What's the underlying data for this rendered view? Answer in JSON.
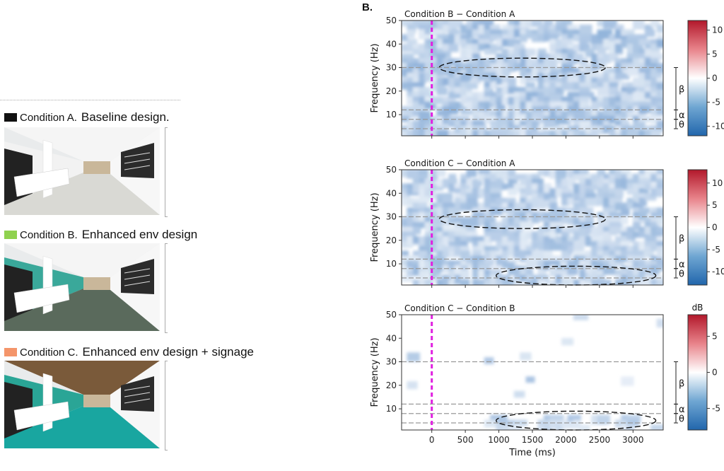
{
  "left_panel": {
    "conditions": [
      {
        "label": "Condition A.",
        "description": "Baseline design.",
        "color": "#111111",
        "wall_accent": "#f2f2f2",
        "floor": "#d9d9d4"
      },
      {
        "label": "Condition B.",
        "description": "Enhanced env design",
        "color": "#8fd14f",
        "wall_accent": "#3aa89a",
        "floor": "#5a6a5c"
      },
      {
        "label": "Condition C.",
        "description": "Enhanced env design + signage",
        "color": "#f4956a",
        "wall_accent": "#2aa596",
        "floor": "#19a6a0"
      }
    ]
  },
  "panel_letter": "B.",
  "chart_data": [
    {
      "type": "heatmap",
      "title": "Condition B − Condition A",
      "xlabel": "",
      "ylabel": "Frequency (Hz)",
      "xlim": [
        -450,
        3450
      ],
      "ylim": [
        1,
        50
      ],
      "xticks": [],
      "yticks": [
        10,
        20,
        30,
        40,
        50
      ],
      "event_line_x": 0,
      "band_lines": [
        4,
        8,
        12,
        30
      ],
      "bands": [
        {
          "label": "β",
          "range": [
            12,
            30
          ]
        },
        {
          "label": "α",
          "range": [
            8,
            12
          ]
        },
        {
          "label": "θ",
          "range": [
            4,
            8
          ]
        }
      ],
      "colorbar": {
        "unit": "",
        "range": [
          -12,
          12
        ],
        "ticks": [
          -10,
          -5,
          0,
          5,
          10
        ]
      },
      "ellipses": [
        {
          "center": [
            1350,
            30
          ],
          "rx": 1300,
          "ry": 4
        }
      ],
      "density": 0.62,
      "strength": 0.45,
      "seed": 11
    },
    {
      "type": "heatmap",
      "title": "Condition C − Condition A",
      "xlabel": "",
      "ylabel": "Frequency (Hz)",
      "xlim": [
        -450,
        3450
      ],
      "ylim": [
        1,
        50
      ],
      "xticks": [],
      "yticks": [
        10,
        20,
        30,
        40,
        50
      ],
      "event_line_x": 0,
      "band_lines": [
        4,
        8,
        12,
        30
      ],
      "bands": [
        {
          "label": "β",
          "range": [
            12,
            30
          ]
        },
        {
          "label": "α",
          "range": [
            8,
            12
          ]
        },
        {
          "label": "θ",
          "range": [
            4,
            8
          ]
        }
      ],
      "colorbar": {
        "unit": "",
        "range": [
          -13,
          13
        ],
        "ticks": [
          -10,
          -5,
          0,
          5,
          10
        ]
      },
      "ellipses": [
        {
          "center": [
            1350,
            29
          ],
          "rx": 1300,
          "ry": 4
        },
        {
          "center": [
            2150,
            5
          ],
          "rx": 1250,
          "ry": 4
        }
      ],
      "density": 0.6,
      "strength": 0.42,
      "seed": 23
    },
    {
      "type": "heatmap",
      "title": "Condition C − Condition B",
      "xlabel": "Time (ms)",
      "ylabel": "Frequency (Hz)",
      "xlim": [
        -450,
        3450
      ],
      "ylim": [
        1,
        50
      ],
      "xticks": [
        0,
        500,
        1000,
        1500,
        2000,
        2500,
        3000
      ],
      "yticks": [
        10,
        20,
        30,
        40,
        50
      ],
      "event_line_x": 0,
      "band_lines": [
        4,
        8,
        12,
        30
      ],
      "bands": [
        {
          "label": "β",
          "range": [
            12,
            30
          ]
        },
        {
          "label": "α",
          "range": [
            8,
            12
          ]
        },
        {
          "label": "θ",
          "range": [
            4,
            8
          ]
        }
      ],
      "colorbar": {
        "unit": "dB",
        "range": [
          -8,
          8
        ],
        "ticks": [
          -5,
          0,
          5
        ]
      },
      "ellipses": [
        {
          "center": [
            2150,
            5
          ],
          "rx": 1250,
          "ry": 4
        }
      ],
      "density": 0.12,
      "strength": 0.35,
      "seed": 37
    }
  ]
}
